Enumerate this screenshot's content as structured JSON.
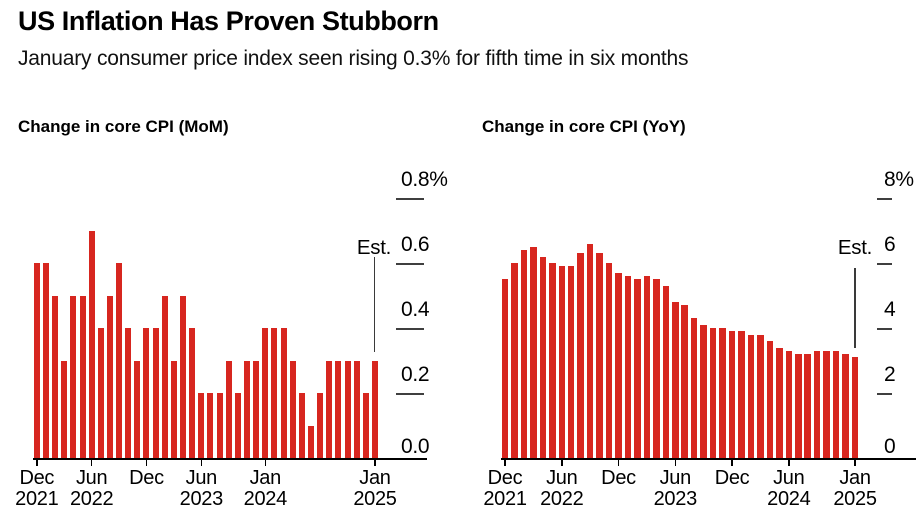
{
  "header": {
    "title": "US Inflation Has Proven Stubborn",
    "subtitle": "January consumer price index seen rising 0.3% for fifth time in six months"
  },
  "accent_color": "#d7261f",
  "chart_data": [
    {
      "name": "mom",
      "type": "bar",
      "title": "Change in core CPI (MoM)",
      "bar_color": "#d7261f",
      "est_label": "Est.",
      "est_index": 37,
      "ylim": [
        0,
        0.8
      ],
      "grid": false,
      "legend": "none",
      "months": [
        "Dec 2021",
        "Jan 2022",
        "Feb 2022",
        "Mar 2022",
        "Apr 2022",
        "May 2022",
        "Jun 2022",
        "Jul 2022",
        "Aug 2022",
        "Sep 2022",
        "Oct 2022",
        "Nov 2022",
        "Dec 2022",
        "Jan 2023",
        "Feb 2023",
        "Mar 2023",
        "Apr 2023",
        "May 2023",
        "Jun 2023",
        "Jul 2023",
        "Aug 2023",
        "Sep 2023",
        "Oct 2023",
        "Nov 2023",
        "Dec 2023",
        "Jan 2024",
        "Feb 2024",
        "Mar 2024",
        "Apr 2024",
        "May 2024",
        "Jun 2024",
        "Jul 2024",
        "Aug 2024",
        "Sep 2024",
        "Oct 2024",
        "Nov 2024",
        "Dec 2024",
        "Jan 2025"
      ],
      "values": [
        0.6,
        0.6,
        0.5,
        0.3,
        0.5,
        0.5,
        0.7,
        0.4,
        0.5,
        0.6,
        0.4,
        0.3,
        0.4,
        0.4,
        0.5,
        0.3,
        0.5,
        0.4,
        0.2,
        0.2,
        0.2,
        0.3,
        0.2,
        0.3,
        0.3,
        0.4,
        0.4,
        0.4,
        0.3,
        0.2,
        0.1,
        0.2,
        0.3,
        0.3,
        0.3,
        0.3,
        0.2,
        0.3
      ],
      "yticks": [
        {
          "value": 0.8,
          "label": "0.8%"
        },
        {
          "value": 0.6,
          "label": "0.6"
        },
        {
          "value": 0.4,
          "label": "0.4"
        },
        {
          "value": 0.2,
          "label": "0.2"
        },
        {
          "value": 0.0,
          "label": "0.0"
        }
      ],
      "xticks": [
        {
          "index": 0,
          "line1": "Dec",
          "line2": "2021"
        },
        {
          "index": 6,
          "line1": "Jun",
          "line2": "2022"
        },
        {
          "index": 12,
          "line1": "Dec",
          "line2": ""
        },
        {
          "index": 18,
          "line1": "Jun",
          "line2": "2023"
        },
        {
          "index": 25,
          "line1": "Jan",
          "line2": "2024"
        },
        {
          "index": 37,
          "line1": "Jan",
          "line2": "2025"
        }
      ]
    },
    {
      "name": "yoy",
      "type": "bar",
      "title": "Change in core CPI (YoY)",
      "bar_color": "#d7261f",
      "est_label": "Est.",
      "est_index": 37,
      "ylim": [
        0,
        8
      ],
      "grid": false,
      "legend": "none",
      "months": [
        "Dec 2021",
        "Jan 2022",
        "Feb 2022",
        "Mar 2022",
        "Apr 2022",
        "May 2022",
        "Jun 2022",
        "Jul 2022",
        "Aug 2022",
        "Sep 2022",
        "Oct 2022",
        "Nov 2022",
        "Dec 2022",
        "Jan 2023",
        "Feb 2023",
        "Mar 2023",
        "Apr 2023",
        "May 2023",
        "Jun 2023",
        "Jul 2023",
        "Aug 2023",
        "Sep 2023",
        "Oct 2023",
        "Nov 2023",
        "Dec 2023",
        "Jan 2024",
        "Feb 2024",
        "Mar 2024",
        "Apr 2024",
        "May 2024",
        "Jun 2024",
        "Jul 2024",
        "Aug 2024",
        "Sep 2024",
        "Oct 2024",
        "Nov 2024",
        "Dec 2024",
        "Jan 2025"
      ],
      "values": [
        5.5,
        6.0,
        6.4,
        6.5,
        6.2,
        6.0,
        5.9,
        5.9,
        6.3,
        6.6,
        6.3,
        6.0,
        5.7,
        5.6,
        5.5,
        5.6,
        5.5,
        5.3,
        4.8,
        4.7,
        4.3,
        4.1,
        4.0,
        4.0,
        3.9,
        3.9,
        3.8,
        3.8,
        3.6,
        3.4,
        3.3,
        3.2,
        3.2,
        3.3,
        3.3,
        3.3,
        3.2,
        3.1
      ],
      "yticks": [
        {
          "value": 8,
          "label": "8%"
        },
        {
          "value": 6,
          "label": "6"
        },
        {
          "value": 4,
          "label": "4"
        },
        {
          "value": 2,
          "label": "2"
        },
        {
          "value": 0,
          "label": "0"
        }
      ],
      "xticks": [
        {
          "index": 0,
          "line1": "Dec",
          "line2": "2021"
        },
        {
          "index": 6,
          "line1": "Jun",
          "line2": "2022"
        },
        {
          "index": 12,
          "line1": "Dec",
          "line2": ""
        },
        {
          "index": 18,
          "line1": "Jun",
          "line2": "2023"
        },
        {
          "index": 24,
          "line1": "Dec",
          "line2": ""
        },
        {
          "index": 30,
          "line1": "Jun",
          "line2": "2024"
        },
        {
          "index": 37,
          "line1": "Jan",
          "line2": "2025"
        }
      ]
    }
  ]
}
